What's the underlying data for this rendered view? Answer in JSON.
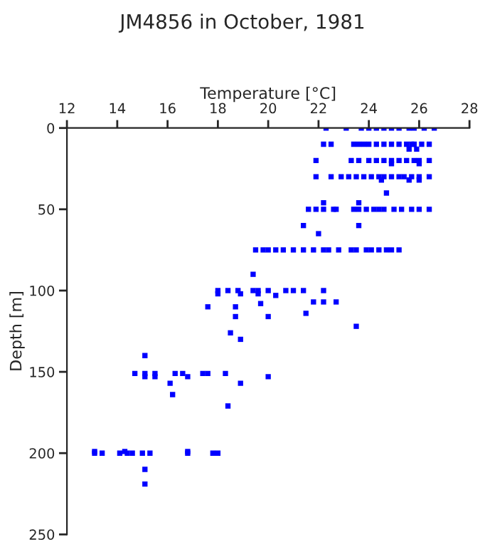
{
  "chart_data": {
    "type": "scatter",
    "title": "JM4856 in October, 1981",
    "xlabel": "Temperature [°C]",
    "ylabel": "Depth [m]",
    "xlim": [
      12,
      28
    ],
    "xticks": [
      12,
      14,
      16,
      18,
      20,
      22,
      24,
      26,
      28
    ],
    "ylim": [
      250,
      0
    ],
    "yticks": [
      0,
      50,
      100,
      150,
      200,
      250
    ],
    "marker": "square",
    "grid": false,
    "series": [
      {
        "color": "#0000ff",
        "x": [
          22.3,
          23.1,
          23.7,
          24.0,
          24.3,
          24.6,
          24.9,
          25.2,
          25.6,
          25.8,
          26.2,
          26.6,
          22.2,
          22.5,
          23.4,
          23.6,
          23.8,
          24.0,
          24.3,
          24.6,
          24.9,
          25.2,
          25.5,
          25.7,
          25.8,
          26.1,
          26.4,
          25.6,
          25.9,
          21.9,
          23.3,
          23.6,
          24.0,
          24.3,
          24.6,
          24.9,
          25.2,
          25.5,
          25.8,
          26.0,
          26.4,
          24.9,
          26.0,
          21.9,
          22.5,
          22.9,
          23.2,
          23.5,
          23.8,
          24.1,
          24.4,
          24.6,
          24.9,
          25.2,
          25.4,
          25.7,
          26.0,
          26.4,
          24.5,
          25.6,
          26.0,
          24.7,
          22.2,
          23.6,
          21.6,
          21.9,
          22.2,
          22.6,
          22.7,
          23.4,
          23.6,
          23.9,
          24.2,
          24.4,
          24.6,
          25.0,
          25.3,
          25.7,
          26.0,
          26.4,
          21.4,
          23.6,
          22.0,
          19.5,
          19.8,
          20.0,
          20.3,
          20.6,
          21.0,
          21.4,
          21.8,
          22.2,
          22.4,
          22.8,
          23.3,
          23.5,
          23.9,
          24.1,
          24.4,
          24.7,
          24.9,
          25.2,
          19.4,
          18.0,
          18.4,
          18.8,
          19.4,
          19.6,
          20.0,
          20.7,
          21.0,
          21.4,
          22.2,
          18.0,
          18.9,
          19.6,
          20.3,
          21.8,
          22.2,
          22.7,
          19.7,
          17.6,
          18.7,
          21.5,
          18.7,
          20.0,
          23.5,
          18.5,
          18.9,
          15.1,
          14.7,
          15.1,
          15.5,
          16.3,
          16.6,
          17.4,
          17.6,
          18.3,
          15.1,
          15.5,
          16.8,
          20.0,
          16.1,
          18.9,
          16.2,
          18.4,
          13.1,
          14.3,
          16.8,
          13.1,
          13.4,
          14.1,
          14.4,
          14.6,
          15.0,
          15.3,
          16.8,
          17.8,
          18.0,
          15.1,
          15.1
        ],
        "values": [
          0,
          0,
          0,
          0,
          0,
          0,
          0,
          0,
          0,
          0,
          0,
          0,
          10,
          10,
          10,
          10,
          10,
          10,
          10,
          10,
          10,
          10,
          10,
          10,
          10,
          10,
          10,
          13,
          13,
          20,
          20,
          20,
          20,
          20,
          20,
          20,
          20,
          20,
          20,
          20,
          20,
          22,
          22,
          30,
          30,
          30,
          30,
          30,
          30,
          30,
          30,
          30,
          30,
          30,
          30,
          30,
          30,
          30,
          32,
          32,
          32,
          40,
          46,
          46,
          50,
          50,
          50,
          50,
          50,
          50,
          50,
          50,
          50,
          50,
          50,
          50,
          50,
          50,
          50,
          50,
          60,
          60,
          65,
          75,
          75,
          75,
          75,
          75,
          75,
          75,
          75,
          75,
          75,
          75,
          75,
          75,
          75,
          75,
          75,
          75,
          75,
          75,
          90,
          100,
          100,
          100,
          100,
          100,
          100,
          100,
          100,
          100,
          100,
          102,
          102,
          102,
          103,
          107,
          107,
          107,
          108,
          110,
          110,
          114,
          116,
          116,
          122,
          126,
          130,
          140,
          151,
          151,
          151,
          151,
          151,
          151,
          151,
          151,
          153,
          153,
          153,
          153,
          157,
          157,
          164,
          171,
          199,
          199,
          199,
          200,
          200,
          200,
          200,
          200,
          200,
          200,
          200,
          200,
          200,
          210,
          219
        ]
      }
    ]
  }
}
